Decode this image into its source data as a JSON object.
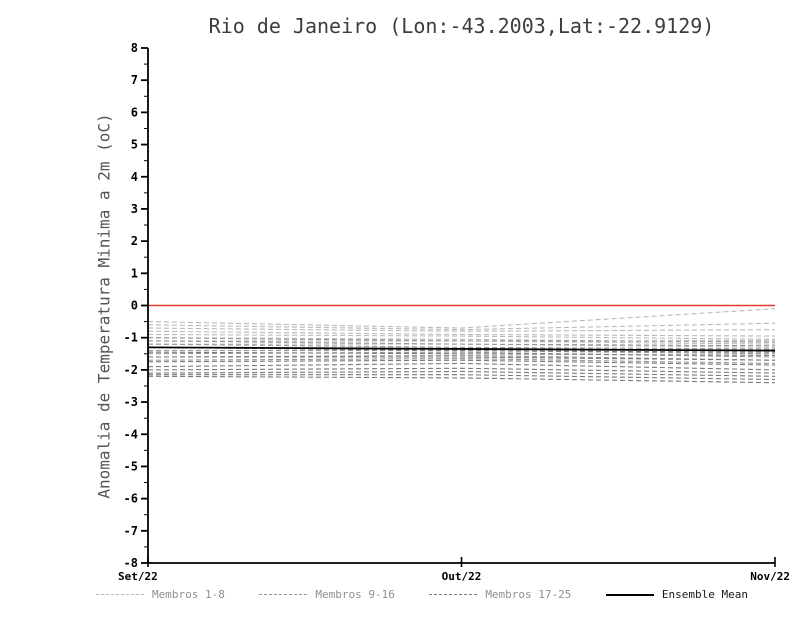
{
  "chart_data": {
    "type": "line",
    "title": "Rio de Janeiro (Lon:-43.2003,Lat:-22.9129)",
    "ylabel": "Anomalia de Temperatura Minima a 2m (oC)",
    "xlabel": "",
    "x_categories": [
      "Set/22",
      "Out/22",
      "Nov/22"
    ],
    "ylim": [
      -8,
      8
    ],
    "ytick_step": 1,
    "grid": false,
    "legend_position": "bottom",
    "axis_color": "#000000",
    "zero_line": {
      "value": 0,
      "color": "#e03c31"
    },
    "groups": [
      {
        "name": "Membros 1-8",
        "color": "#b9b9b9"
      },
      {
        "name": "Membros 9-16",
        "color": "#979797"
      },
      {
        "name": "Membros 17-25",
        "color": "#7a7a7a"
      }
    ],
    "members": [
      {
        "group": 0,
        "values": [
          -0.5,
          -0.7,
          -0.1
        ]
      },
      {
        "group": 0,
        "values": [
          -0.6,
          -0.75,
          -0.55
        ]
      },
      {
        "group": 0,
        "values": [
          -0.7,
          -0.8,
          -0.75
        ]
      },
      {
        "group": 0,
        "values": [
          -0.8,
          -0.9,
          -0.95
        ]
      },
      {
        "group": 0,
        "values": [
          -0.9,
          -0.95,
          -1.05
        ]
      },
      {
        "group": 0,
        "values": [
          -1.0,
          -1.05,
          -1.15
        ]
      },
      {
        "group": 0,
        "values": [
          -1.1,
          -1.1,
          -1.2
        ]
      },
      {
        "group": 0,
        "values": [
          -1.2,
          -1.2,
          -1.3
        ]
      },
      {
        "group": 1,
        "values": [
          -1.0,
          -1.1,
          -1.1
        ]
      },
      {
        "group": 1,
        "values": [
          -1.1,
          -1.2,
          -1.25
        ]
      },
      {
        "group": 1,
        "values": [
          -1.2,
          -1.3,
          -1.35
        ]
      },
      {
        "group": 1,
        "values": [
          -1.3,
          -1.35,
          -1.4
        ]
      },
      {
        "group": 1,
        "values": [
          -1.4,
          -1.4,
          -1.5
        ]
      },
      {
        "group": 1,
        "values": [
          -1.5,
          -1.45,
          -1.6
        ]
      },
      {
        "group": 1,
        "values": [
          -1.6,
          -1.55,
          -1.7
        ]
      },
      {
        "group": 1,
        "values": [
          -1.7,
          -1.65,
          -1.8
        ]
      },
      {
        "group": 2,
        "values": [
          -1.3,
          -1.4,
          -1.45
        ]
      },
      {
        "group": 2,
        "values": [
          -1.45,
          -1.5,
          -1.55
        ]
      },
      {
        "group": 2,
        "values": [
          -1.6,
          -1.6,
          -1.7
        ]
      },
      {
        "group": 2,
        "values": [
          -1.75,
          -1.7,
          -1.85
        ]
      },
      {
        "group": 2,
        "values": [
          -1.9,
          -1.8,
          -2.0
        ]
      },
      {
        "group": 2,
        "values": [
          -2.0,
          -1.95,
          -2.1
        ]
      },
      {
        "group": 2,
        "values": [
          -2.1,
          -2.05,
          -2.2
        ]
      },
      {
        "group": 2,
        "values": [
          -2.15,
          -2.15,
          -2.3
        ]
      },
      {
        "group": 2,
        "values": [
          -2.2,
          -2.25,
          -2.4
        ]
      }
    ],
    "ensemble_mean": {
      "name": "Ensemble Mean",
      "color": "#000000",
      "values": [
        -1.3,
        -1.35,
        -1.4
      ]
    },
    "legend": [
      {
        "label": "Membros 1-8",
        "color": "#b9b9b9",
        "style": "dashed",
        "label_color": "#8f8f8f"
      },
      {
        "label": "Membros 9-16",
        "color": "#979797",
        "style": "dashed",
        "label_color": "#8f8f8f"
      },
      {
        "label": "Membros 17-25",
        "color": "#7a7a7a",
        "style": "dashed",
        "label_color": "#8f8f8f"
      },
      {
        "label": "Ensemble Mean",
        "color": "#000000",
        "style": "solid",
        "label_color": "#1a1a1a"
      }
    ]
  }
}
